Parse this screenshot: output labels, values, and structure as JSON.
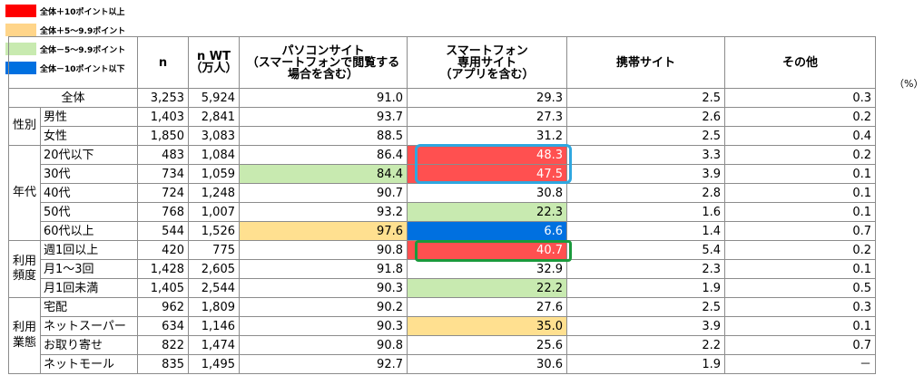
{
  "legend": [
    {
      "label": "全体＋10ポイント以上",
      "color": "#ff0000"
    },
    {
      "label": "全体＋5～9.9ポイント",
      "color": "#ffd58a"
    },
    {
      "label": "全体－5～9.9ポイント",
      "color": "#c8eab0"
    },
    {
      "label": "全体－10ポイント以下",
      "color": "#0070e0"
    }
  ],
  "unit": "（%）",
  "chart_data": {
    "type": "table",
    "columns": [
      {
        "key": "n",
        "lines": [
          "n"
        ]
      },
      {
        "key": "nwt",
        "lines": [
          "n WT",
          "（万人）"
        ]
      },
      {
        "key": "pc",
        "lines": [
          "パソコンサイト",
          "（スマートフォンで閲覧する",
          "場合を含む）"
        ]
      },
      {
        "key": "sp",
        "lines": [
          "スマートフォン",
          "専用サイト",
          "（アプリを含む）"
        ]
      },
      {
        "key": "mobile",
        "lines": [
          "携帯サイト"
        ]
      },
      {
        "key": "other",
        "lines": [
          "その他"
        ]
      }
    ],
    "groups": [
      {
        "label": [],
        "rows": [
          {
            "label": "全体",
            "n": "3,253",
            "nwt": "5,924",
            "pc": "91.0",
            "sp": "29.3",
            "mobile": "2.5",
            "other": "0.3"
          }
        ]
      },
      {
        "label": [
          "性別"
        ],
        "rows": [
          {
            "label": "男性",
            "n": "1,403",
            "nwt": "2,841",
            "pc": "93.7",
            "sp": "27.3",
            "mobile": "2.6",
            "other": "0.2"
          },
          {
            "label": "女性",
            "n": "1,850",
            "nwt": "3,083",
            "pc": "88.5",
            "sp": "31.2",
            "mobile": "2.5",
            "other": "0.4"
          }
        ]
      },
      {
        "label": [
          "年代"
        ],
        "rows": [
          {
            "label": "20代以下",
            "n": "483",
            "nwt": "1,084",
            "pc": "86.4",
            "sp": "48.3",
            "sp_hl": "red",
            "mobile": "3.3",
            "other": "0.2"
          },
          {
            "label": "30代",
            "n": "734",
            "nwt": "1,059",
            "pc": "84.4",
            "pc_hl": "green",
            "sp": "47.5",
            "sp_hl": "red",
            "mobile": "3.9",
            "other": "0.1"
          },
          {
            "label": "40代",
            "n": "724",
            "nwt": "1,248",
            "pc": "90.7",
            "sp": "30.8",
            "mobile": "2.8",
            "other": "0.1"
          },
          {
            "label": "50代",
            "n": "768",
            "nwt": "1,007",
            "pc": "93.2",
            "sp": "22.3",
            "sp_hl": "green",
            "mobile": "1.6",
            "other": "0.1"
          },
          {
            "label": "60代以上",
            "n": "544",
            "nwt": "1,526",
            "pc": "97.6",
            "pc_hl": "yellow",
            "sp": "6.6",
            "sp_hl": "blue",
            "mobile": "1.4",
            "other": "0.7"
          }
        ]
      },
      {
        "label": [
          "利用",
          "頻度"
        ],
        "rows": [
          {
            "label": "週1回以上",
            "n": "420",
            "nwt": "775",
            "pc": "90.8",
            "sp": "40.7",
            "sp_hl": "red",
            "mobile": "5.4",
            "other": "0.2"
          },
          {
            "label": "月1～3回",
            "n": "1,428",
            "nwt": "2,605",
            "pc": "91.8",
            "sp": "32.9",
            "mobile": "2.3",
            "other": "0.1"
          },
          {
            "label": "月1回未満",
            "n": "1,405",
            "nwt": "2,544",
            "pc": "90.3",
            "sp": "22.2",
            "sp_hl": "green",
            "mobile": "1.9",
            "other": "0.5"
          }
        ]
      },
      {
        "label": [
          "利用",
          "業態"
        ],
        "rows": [
          {
            "label": "宅配",
            "n": "962",
            "nwt": "1,809",
            "pc": "90.2",
            "sp": "27.6",
            "mobile": "2.5",
            "other": "0.3"
          },
          {
            "label": "ネットスーパー",
            "n": "634",
            "nwt": "1,146",
            "pc": "90.3",
            "sp": "35.0",
            "sp_hl": "yellow",
            "mobile": "3.9",
            "other": "0.1"
          },
          {
            "label": "お取り寄せ",
            "n": "822",
            "nwt": "1,474",
            "pc": "90.8",
            "sp": "25.6",
            "mobile": "2.2",
            "other": "0.7"
          },
          {
            "label": "ネットモール",
            "n": "835",
            "nwt": "1,495",
            "pc": "92.7",
            "sp": "30.6",
            "mobile": "1.9",
            "other": "－"
          }
        ]
      }
    ]
  }
}
